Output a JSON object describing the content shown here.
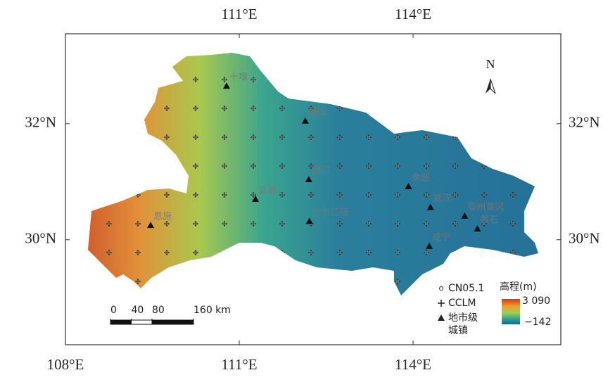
{
  "map": {
    "xlim": [
      108,
      116.55
    ],
    "ylim": [
      28.19,
      33.55
    ],
    "top_ticks": [
      {
        "value": 111,
        "label": "111°E"
      },
      {
        "value": 114,
        "label": "114°E"
      }
    ],
    "bottom_ticks": [
      {
        "value": 108,
        "label": "108°E"
      },
      {
        "value": 111,
        "label": "111°E"
      },
      {
        "value": 114,
        "label": "114°E"
      }
    ],
    "left_ticks": [
      {
        "value": 32,
        "label": "32°N"
      },
      {
        "value": 30,
        "label": "30°N"
      }
    ],
    "right_ticks": [
      {
        "value": 32,
        "label": "32°N"
      },
      {
        "value": 30,
        "label": "30°N"
      }
    ],
    "north": "N",
    "cities": [
      {
        "name": "十堰",
        "lon": 110.78,
        "lat": 32.65
      },
      {
        "name": "襄阳",
        "lon": 112.14,
        "lat": 32.05
      },
      {
        "name": "荆门",
        "lon": 112.2,
        "lat": 31.04
      },
      {
        "name": "宜昌",
        "lon": 111.28,
        "lat": 30.7
      },
      {
        "name": "恩施",
        "lon": 109.47,
        "lat": 30.25
      },
      {
        "name": "沙市江陵",
        "lon": 112.21,
        "lat": 30.32
      },
      {
        "name": "孝感",
        "lon": 113.92,
        "lat": 30.92
      },
      {
        "name": "武汉",
        "lon": 114.3,
        "lat": 30.56
      },
      {
        "name": "鄂州黄冈",
        "lon": 114.89,
        "lat": 30.41
      },
      {
        "name": "咸宁",
        "lon": 114.28,
        "lat": 29.89
      },
      {
        "name": "黄石",
        "lon": 115.11,
        "lat": 30.19
      }
    ]
  },
  "legend": {
    "cn05": "CN05.1",
    "cclm": "CCLM",
    "city": [
      "地市级",
      "城镇"
    ],
    "elevation_title": "高程(m)",
    "elevation_max": {
      "value": 3090,
      "label": "3 090"
    },
    "elevation_min": {
      "value": -142,
      "label": "−142"
    }
  },
  "scale_bar": {
    "ticks": [
      0,
      40,
      80,
      {
        "value": 160,
        "label": "160 km"
      }
    ]
  }
}
